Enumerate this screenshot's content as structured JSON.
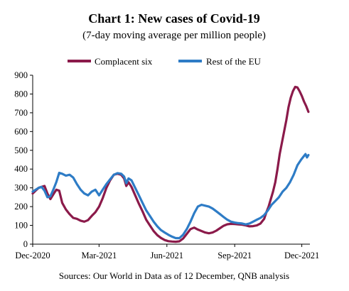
{
  "chart_data": {
    "type": "line",
    "title": "Chart 1: New cases of Covid-19",
    "subtitle": "(7-day moving average per million people)",
    "source": "Sources: Our World in Data as of 12 December, QNB analysis",
    "ylim": [
      0,
      900
    ],
    "yticks": [
      0,
      100,
      200,
      300,
      400,
      500,
      600,
      700,
      800,
      900
    ],
    "xlim": [
      "2020-12-01",
      "2021-12-12"
    ],
    "xticks": [
      {
        "label": "Dec-2020",
        "date": "2020-12-01"
      },
      {
        "label": "Mar-2021",
        "date": "2021-03-01"
      },
      {
        "label": "Jun-2021",
        "date": "2021-06-01"
      },
      {
        "label": "Sep-2021",
        "date": "2021-09-01"
      },
      {
        "label": "Dec-2021",
        "date": "2021-12-01"
      }
    ],
    "legend_position": "top",
    "grid": false,
    "series": [
      {
        "name": "Complacent six",
        "color": "#8B1A4A",
        "points": [
          [
            "2020-12-01",
            270
          ],
          [
            "2020-12-05",
            285
          ],
          [
            "2020-12-09",
            300
          ],
          [
            "2020-12-13",
            305
          ],
          [
            "2020-12-17",
            310
          ],
          [
            "2020-12-21",
            270
          ],
          [
            "2020-12-25",
            240
          ],
          [
            "2020-12-29",
            265
          ],
          [
            "2021-01-02",
            290
          ],
          [
            "2021-01-06",
            285
          ],
          [
            "2021-01-10",
            220
          ],
          [
            "2021-01-15",
            185
          ],
          [
            "2021-01-20",
            160
          ],
          [
            "2021-01-25",
            140
          ],
          [
            "2021-01-30",
            135
          ],
          [
            "2021-02-04",
            125
          ],
          [
            "2021-02-09",
            120
          ],
          [
            "2021-02-14",
            128
          ],
          [
            "2021-02-19",
            150
          ],
          [
            "2021-02-24",
            170
          ],
          [
            "2021-03-01",
            200
          ],
          [
            "2021-03-06",
            245
          ],
          [
            "2021-03-11",
            300
          ],
          [
            "2021-03-16",
            340
          ],
          [
            "2021-03-21",
            370
          ],
          [
            "2021-03-26",
            375
          ],
          [
            "2021-03-31",
            370
          ],
          [
            "2021-04-04",
            350
          ],
          [
            "2021-04-07",
            310
          ],
          [
            "2021-04-10",
            330
          ],
          [
            "2021-04-14",
            305
          ],
          [
            "2021-04-19",
            260
          ],
          [
            "2021-04-24",
            215
          ],
          [
            "2021-04-29",
            175
          ],
          [
            "2021-05-04",
            130
          ],
          [
            "2021-05-09",
            100
          ],
          [
            "2021-05-14",
            70
          ],
          [
            "2021-05-19",
            48
          ],
          [
            "2021-05-24",
            33
          ],
          [
            "2021-05-29",
            22
          ],
          [
            "2021-06-03",
            16
          ],
          [
            "2021-06-08",
            14
          ],
          [
            "2021-06-13",
            13
          ],
          [
            "2021-06-18",
            15
          ],
          [
            "2021-06-23",
            30
          ],
          [
            "2021-06-28",
            55
          ],
          [
            "2021-07-03",
            80
          ],
          [
            "2021-07-08",
            88
          ],
          [
            "2021-07-13",
            78
          ],
          [
            "2021-07-18",
            70
          ],
          [
            "2021-07-23",
            62
          ],
          [
            "2021-07-28",
            58
          ],
          [
            "2021-08-02",
            62
          ],
          [
            "2021-08-07",
            72
          ],
          [
            "2021-08-12",
            85
          ],
          [
            "2021-08-17",
            98
          ],
          [
            "2021-08-22",
            106
          ],
          [
            "2021-08-27",
            108
          ],
          [
            "2021-09-01",
            107
          ],
          [
            "2021-09-06",
            105
          ],
          [
            "2021-09-11",
            104
          ],
          [
            "2021-09-16",
            100
          ],
          [
            "2021-09-21",
            95
          ],
          [
            "2021-09-26",
            96
          ],
          [
            "2021-10-01",
            100
          ],
          [
            "2021-10-06",
            110
          ],
          [
            "2021-10-11",
            135
          ],
          [
            "2021-10-14",
            170
          ],
          [
            "2021-10-17",
            200
          ],
          [
            "2021-10-20",
            240
          ],
          [
            "2021-10-23",
            280
          ],
          [
            "2021-10-26",
            330
          ],
          [
            "2021-10-29",
            400
          ],
          [
            "2021-11-01",
            480
          ],
          [
            "2021-11-04",
            540
          ],
          [
            "2021-11-07",
            600
          ],
          [
            "2021-11-10",
            660
          ],
          [
            "2021-11-13",
            730
          ],
          [
            "2021-11-16",
            780
          ],
          [
            "2021-11-19",
            815
          ],
          [
            "2021-11-22",
            838
          ],
          [
            "2021-11-25",
            835
          ],
          [
            "2021-11-28",
            815
          ],
          [
            "2021-12-01",
            790
          ],
          [
            "2021-12-04",
            760
          ],
          [
            "2021-12-07",
            735
          ],
          [
            "2021-12-10",
            705
          ]
        ]
      },
      {
        "name": "Rest of the EU",
        "color": "#2E7CC6",
        "points": [
          [
            "2020-12-01",
            280
          ],
          [
            "2020-12-05",
            290
          ],
          [
            "2020-12-09",
            300
          ],
          [
            "2020-12-13",
            305
          ],
          [
            "2020-12-17",
            285
          ],
          [
            "2020-12-21",
            250
          ],
          [
            "2020-12-25",
            255
          ],
          [
            "2020-12-29",
            290
          ],
          [
            "2021-01-02",
            330
          ],
          [
            "2021-01-06",
            380
          ],
          [
            "2021-01-10",
            375
          ],
          [
            "2021-01-15",
            365
          ],
          [
            "2021-01-20",
            370
          ],
          [
            "2021-01-25",
            355
          ],
          [
            "2021-01-30",
            320
          ],
          [
            "2021-02-04",
            290
          ],
          [
            "2021-02-09",
            270
          ],
          [
            "2021-02-14",
            260
          ],
          [
            "2021-02-19",
            280
          ],
          [
            "2021-02-24",
            290
          ],
          [
            "2021-03-01",
            260
          ],
          [
            "2021-03-06",
            290
          ],
          [
            "2021-03-11",
            320
          ],
          [
            "2021-03-16",
            345
          ],
          [
            "2021-03-21",
            370
          ],
          [
            "2021-03-26",
            378
          ],
          [
            "2021-03-31",
            375
          ],
          [
            "2021-04-04",
            360
          ],
          [
            "2021-04-07",
            325
          ],
          [
            "2021-04-10",
            350
          ],
          [
            "2021-04-14",
            340
          ],
          [
            "2021-04-19",
            300
          ],
          [
            "2021-04-24",
            260
          ],
          [
            "2021-04-29",
            220
          ],
          [
            "2021-05-04",
            180
          ],
          [
            "2021-05-09",
            150
          ],
          [
            "2021-05-14",
            120
          ],
          [
            "2021-05-19",
            95
          ],
          [
            "2021-05-24",
            75
          ],
          [
            "2021-05-29",
            62
          ],
          [
            "2021-06-03",
            50
          ],
          [
            "2021-06-08",
            40
          ],
          [
            "2021-06-13",
            32
          ],
          [
            "2021-06-18",
            32
          ],
          [
            "2021-06-23",
            50
          ],
          [
            "2021-06-28",
            80
          ],
          [
            "2021-07-03",
            120
          ],
          [
            "2021-07-08",
            165
          ],
          [
            "2021-07-13",
            200
          ],
          [
            "2021-07-18",
            210
          ],
          [
            "2021-07-23",
            205
          ],
          [
            "2021-07-28",
            200
          ],
          [
            "2021-08-02",
            190
          ],
          [
            "2021-08-07",
            175
          ],
          [
            "2021-08-12",
            160
          ],
          [
            "2021-08-17",
            145
          ],
          [
            "2021-08-22",
            130
          ],
          [
            "2021-08-27",
            120
          ],
          [
            "2021-09-01",
            115
          ],
          [
            "2021-09-06",
            112
          ],
          [
            "2021-09-11",
            110
          ],
          [
            "2021-09-16",
            105
          ],
          [
            "2021-09-21",
            110
          ],
          [
            "2021-09-26",
            120
          ],
          [
            "2021-10-01",
            130
          ],
          [
            "2021-10-06",
            140
          ],
          [
            "2021-10-11",
            155
          ],
          [
            "2021-10-16",
            180
          ],
          [
            "2021-10-21",
            210
          ],
          [
            "2021-10-26",
            230
          ],
          [
            "2021-10-31",
            250
          ],
          [
            "2021-11-05",
            280
          ],
          [
            "2021-11-10",
            300
          ],
          [
            "2021-11-15",
            330
          ],
          [
            "2021-11-20",
            370
          ],
          [
            "2021-11-25",
            420
          ],
          [
            "2021-11-30",
            450
          ],
          [
            "2021-12-03",
            465
          ],
          [
            "2021-12-06",
            480
          ],
          [
            "2021-12-08",
            462
          ],
          [
            "2021-12-10",
            475
          ]
        ]
      }
    ]
  }
}
